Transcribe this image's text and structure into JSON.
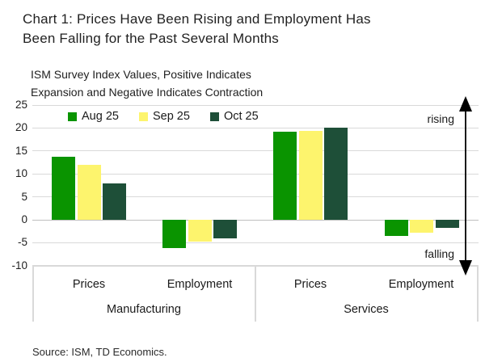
{
  "page": {
    "title_lines": [
      "Chart 1: Prices Have Been Rising and Employment Has",
      "Been Falling for the Past Several Months"
    ],
    "subtitle_lines": [
      "ISM Survey Index Values, Positive Indicates",
      "Expansion and Negative Indicates Contraction"
    ],
    "source": "Source: ISM, TD Economics."
  },
  "chart_data": {
    "type": "bar",
    "title": "Chart 1: Prices Have Been Rising and Employment Has Been Falling for the Past Several Months",
    "subtitle": "ISM Survey Index Values, Positive Indicates Expansion and Negative Indicates Contraction",
    "categories": [
      "Manufacturing Prices",
      "Manufacturing Employment",
      "Services Prices",
      "Services Employment"
    ],
    "category_labels": [
      "Prices",
      "Employment",
      "Prices",
      "Employment"
    ],
    "sector_labels": [
      "Manufacturing",
      "Services"
    ],
    "series": [
      {
        "name": "Aug 25",
        "color": "#0a9400",
        "values": [
          13.7,
          -6.2,
          19.2,
          -3.5
        ]
      },
      {
        "name": "Sep 25",
        "color": "#fdf46d",
        "values": [
          11.9,
          -4.7,
          19.4,
          -2.8
        ]
      },
      {
        "name": "Oct 25",
        "color": "#1e4f38",
        "values": [
          8.0,
          -4.0,
          20.0,
          -1.8
        ]
      }
    ],
    "ylim": [
      -10,
      25
    ],
    "yticks": [
      25,
      20,
      15,
      10,
      5,
      0,
      -5,
      -10
    ],
    "grid": true,
    "legend_position": "top-left",
    "annotations": {
      "top_right": "rising",
      "bottom_right": "falling"
    },
    "arrow_color": "#000000",
    "source": "Source: ISM, TD Economics."
  }
}
